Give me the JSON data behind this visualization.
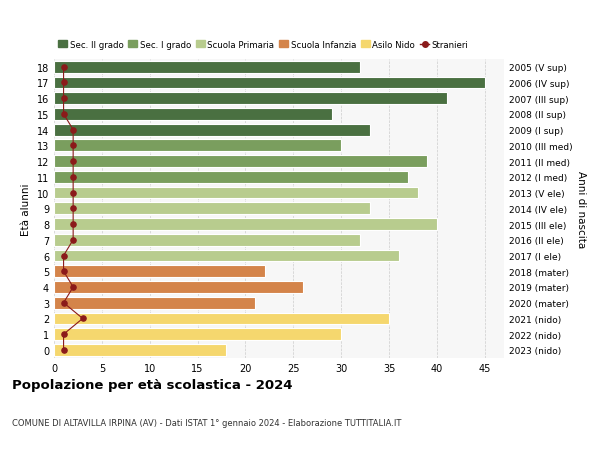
{
  "ages": [
    18,
    17,
    16,
    15,
    14,
    13,
    12,
    11,
    10,
    9,
    8,
    7,
    6,
    5,
    4,
    3,
    2,
    1,
    0
  ],
  "bar_values": [
    32,
    45,
    41,
    29,
    33,
    30,
    39,
    37,
    38,
    33,
    40,
    32,
    36,
    22,
    26,
    21,
    35,
    30,
    18
  ],
  "stranieri_values": [
    1,
    1,
    1,
    1,
    2,
    2,
    2,
    2,
    2,
    2,
    2,
    2,
    1,
    1,
    2,
    1,
    3,
    1,
    1
  ],
  "bar_colors": [
    "#4a7041",
    "#4a7041",
    "#4a7041",
    "#4a7041",
    "#4a7041",
    "#7a9e5e",
    "#7a9e5e",
    "#7a9e5e",
    "#b8cc8e",
    "#b8cc8e",
    "#b8cc8e",
    "#b8cc8e",
    "#b8cc8e",
    "#d4844a",
    "#d4844a",
    "#d4844a",
    "#f5d76e",
    "#f5d76e",
    "#f5d76e"
  ],
  "right_labels": [
    "2005 (V sup)",
    "2006 (IV sup)",
    "2007 (III sup)",
    "2008 (II sup)",
    "2009 (I sup)",
    "2010 (III med)",
    "2011 (II med)",
    "2012 (I med)",
    "2013 (V ele)",
    "2014 (IV ele)",
    "2015 (III ele)",
    "2016 (II ele)",
    "2017 (I ele)",
    "2018 (mater)",
    "2019 (mater)",
    "2020 (mater)",
    "2021 (nido)",
    "2022 (nido)",
    "2023 (nido)"
  ],
  "legend_labels": [
    "Sec. II grado",
    "Sec. I grado",
    "Scuola Primaria",
    "Scuola Infanzia",
    "Asilo Nido",
    "Stranieri"
  ],
  "legend_colors": [
    "#4a7041",
    "#7a9e5e",
    "#b8cc8e",
    "#d4844a",
    "#f5d76e",
    "#8b1a1a"
  ],
  "xlabel_vals": [
    0,
    5,
    10,
    15,
    20,
    25,
    30,
    35,
    40,
    45
  ],
  "xlim": [
    0,
    47
  ],
  "title": "Popolazione per età scolastica - 2024",
  "subtitle": "COMUNE DI ALTAVILLA IRPINA (AV) - Dati ISTAT 1° gennaio 2024 - Elaborazione TUTTITALIA.IT",
  "ylabel": "Età alunni",
  "right_ylabel": "Anni di nascita",
  "bg_color": "#ffffff",
  "plot_bg_color": "#f7f7f7",
  "grid_color": "#cccccc",
  "stranieri_color": "#8b1a1a"
}
